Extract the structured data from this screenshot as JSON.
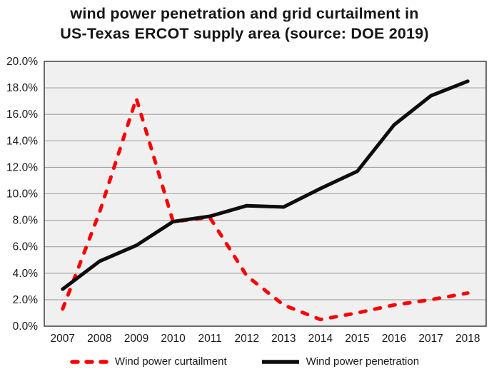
{
  "title": {
    "line1": "wind power penetration and grid curtailment in",
    "line2": "US-Texas ERCOT supply area (source: DOE 2019)"
  },
  "chart_data": {
    "type": "line",
    "categories": [
      "2007",
      "2008",
      "2009",
      "2010",
      "2011",
      "2012",
      "2013",
      "2014",
      "2015",
      "2016",
      "2017",
      "2018"
    ],
    "series": [
      {
        "name": "Wind power curtailment",
        "color": "#fe0000",
        "style": "dashed",
        "values": [
          1.3,
          8.6,
          17.2,
          7.9,
          8.2,
          3.8,
          1.6,
          0.5,
          1.0,
          1.6,
          2.0,
          2.5
        ]
      },
      {
        "name": "Wind power penetration",
        "color": "#0d0d0d",
        "style": "solid",
        "values": [
          2.8,
          4.9,
          6.1,
          7.9,
          8.3,
          9.1,
          9.0,
          10.4,
          11.7,
          15.2,
          17.4,
          18.5
        ]
      }
    ],
    "ylim": [
      0,
      20
    ],
    "ytick_step": 2,
    "ytick_suffix": "%",
    "xlabel": "",
    "ylabel": "",
    "grid": "horizontal",
    "legend_position": "bottom",
    "colors": {
      "plot_bg": "#f0f0f0",
      "grid_line": "#a3a3a3",
      "plot_border": "#4a4a4a",
      "axis_text": "#1a1a1a"
    }
  }
}
